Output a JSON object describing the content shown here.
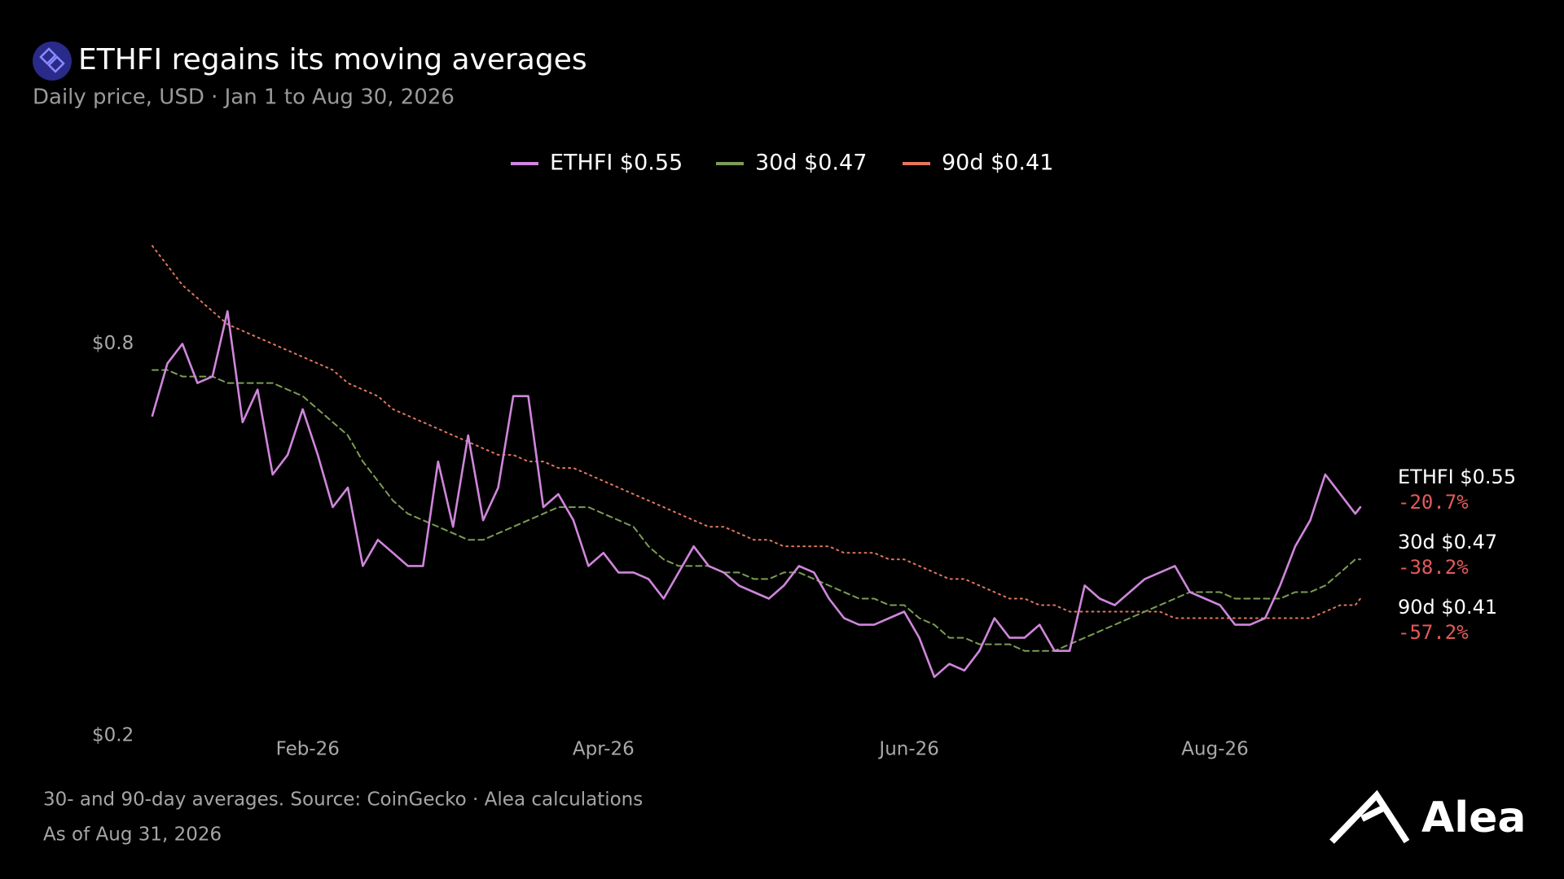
{
  "chart_data": {
    "type": "line",
    "title": "ETHFI regains its moving averages",
    "subtitle": "Daily price, USD · Jan 1 to Aug 30, 2026",
    "footnote": "30- and 90-day averages. Source: CoinGecko · Alea calculations",
    "as_of": "As of Aug 31, 2026",
    "brand": "Alea",
    "x": [
      "2026-01-01",
      "2026-01-04",
      "2026-01-07",
      "2026-01-10",
      "2026-01-13",
      "2026-01-16",
      "2026-01-19",
      "2026-01-22",
      "2026-01-25",
      "2026-01-28",
      "2026-01-31",
      "2026-02-03",
      "2026-02-06",
      "2026-02-09",
      "2026-02-12",
      "2026-02-15",
      "2026-02-18",
      "2026-02-21",
      "2026-02-24",
      "2026-02-27",
      "2026-03-02",
      "2026-03-05",
      "2026-03-08",
      "2026-03-11",
      "2026-03-14",
      "2026-03-17",
      "2026-03-20",
      "2026-03-23",
      "2026-03-26",
      "2026-03-29",
      "2026-04-01",
      "2026-04-04",
      "2026-04-07",
      "2026-04-10",
      "2026-04-13",
      "2026-04-16",
      "2026-04-19",
      "2026-04-22",
      "2026-04-25",
      "2026-04-28",
      "2026-05-01",
      "2026-05-04",
      "2026-05-07",
      "2026-05-10",
      "2026-05-13",
      "2026-05-16",
      "2026-05-19",
      "2026-05-22",
      "2026-05-25",
      "2026-05-28",
      "2026-05-31",
      "2026-06-03",
      "2026-06-06",
      "2026-06-09",
      "2026-06-12",
      "2026-06-15",
      "2026-06-18",
      "2026-06-21",
      "2026-06-24",
      "2026-06-27",
      "2026-06-30",
      "2026-07-03",
      "2026-07-06",
      "2026-07-09",
      "2026-07-12",
      "2026-07-15",
      "2026-07-18",
      "2026-07-21",
      "2026-07-24",
      "2026-07-27",
      "2026-07-30",
      "2026-08-02",
      "2026-08-05",
      "2026-08-08",
      "2026-08-11",
      "2026-08-14",
      "2026-08-17",
      "2026-08-20",
      "2026-08-23",
      "2026-08-26",
      "2026-08-29",
      "2026-08-30"
    ],
    "series": [
      {
        "name": "ETHFI $0.55",
        "color": "#cf86db",
        "style": "solid",
        "change": {
          "value": -20.7,
          "label": "-20.7%"
        },
        "values": [
          0.69,
          0.77,
          0.8,
          0.74,
          0.75,
          0.85,
          0.68,
          0.73,
          0.6,
          0.63,
          0.7,
          0.63,
          0.55,
          0.58,
          0.46,
          0.5,
          0.48,
          0.46,
          0.46,
          0.62,
          0.52,
          0.66,
          0.53,
          0.58,
          0.72,
          0.72,
          0.55,
          0.57,
          0.53,
          0.46,
          0.48,
          0.45,
          0.45,
          0.44,
          0.41,
          0.45,
          0.49,
          0.46,
          0.45,
          0.43,
          0.42,
          0.41,
          0.43,
          0.46,
          0.45,
          0.41,
          0.38,
          0.37,
          0.37,
          0.38,
          0.39,
          0.35,
          0.29,
          0.31,
          0.3,
          0.33,
          0.38,
          0.35,
          0.35,
          0.37,
          0.33,
          0.33,
          0.43,
          0.41,
          0.4,
          0.42,
          0.44,
          0.45,
          0.46,
          0.42,
          0.41,
          0.4,
          0.37,
          0.37,
          0.38,
          0.43,
          0.49,
          0.53,
          0.6,
          0.57,
          0.54,
          0.55
        ]
      },
      {
        "name": "30d $0.47",
        "color": "#7c9c57",
        "style": "dashed",
        "change": {
          "value": -38.2,
          "label": "-38.2%"
        },
        "values": [
          0.76,
          0.76,
          0.75,
          0.75,
          0.75,
          0.74,
          0.74,
          0.74,
          0.74,
          0.73,
          0.72,
          0.7,
          0.68,
          0.66,
          0.62,
          0.59,
          0.56,
          0.54,
          0.53,
          0.52,
          0.51,
          0.5,
          0.5,
          0.51,
          0.52,
          0.53,
          0.54,
          0.55,
          0.55,
          0.55,
          0.54,
          0.53,
          0.52,
          0.49,
          0.47,
          0.46,
          0.46,
          0.46,
          0.45,
          0.45,
          0.44,
          0.44,
          0.45,
          0.45,
          0.44,
          0.43,
          0.42,
          0.41,
          0.41,
          0.4,
          0.4,
          0.38,
          0.37,
          0.35,
          0.35,
          0.34,
          0.34,
          0.34,
          0.33,
          0.33,
          0.33,
          0.34,
          0.35,
          0.36,
          0.37,
          0.38,
          0.39,
          0.4,
          0.41,
          0.42,
          0.42,
          0.42,
          0.41,
          0.41,
          0.41,
          0.41,
          0.42,
          0.42,
          0.43,
          0.45,
          0.47,
          0.47
        ]
      },
      {
        "name": "90d $0.41",
        "color": "#e2775c",
        "style": "dotted",
        "change": {
          "value": -57.2,
          "label": "-57.2%"
        },
        "values": [
          0.95,
          0.92,
          0.89,
          0.87,
          0.85,
          0.83,
          0.82,
          0.81,
          0.8,
          0.79,
          0.78,
          0.77,
          0.76,
          0.74,
          0.73,
          0.72,
          0.7,
          0.69,
          0.68,
          0.67,
          0.66,
          0.65,
          0.64,
          0.63,
          0.63,
          0.62,
          0.62,
          0.61,
          0.61,
          0.6,
          0.59,
          0.58,
          0.57,
          0.56,
          0.55,
          0.54,
          0.53,
          0.52,
          0.52,
          0.51,
          0.5,
          0.5,
          0.49,
          0.49,
          0.49,
          0.49,
          0.48,
          0.48,
          0.48,
          0.47,
          0.47,
          0.46,
          0.45,
          0.44,
          0.44,
          0.43,
          0.42,
          0.41,
          0.41,
          0.4,
          0.4,
          0.39,
          0.39,
          0.39,
          0.39,
          0.39,
          0.39,
          0.39,
          0.38,
          0.38,
          0.38,
          0.38,
          0.38,
          0.38,
          0.38,
          0.38,
          0.38,
          0.38,
          0.39,
          0.4,
          0.4,
          0.41
        ]
      }
    ],
    "xlim": [
      "2026-01-01",
      "2026-08-30"
    ],
    "xticks": [
      {
        "value": "2026-02-01",
        "label": "Feb-26"
      },
      {
        "value": "2026-04-01",
        "label": "Apr-26"
      },
      {
        "value": "2026-06-01",
        "label": "Jun-26"
      },
      {
        "value": "2026-08-01",
        "label": "Aug-26"
      }
    ],
    "ylim": [
      0.2,
      1.0
    ],
    "yticks": [
      {
        "value": 0.2,
        "label": "$0.2"
      },
      {
        "value": 0.8,
        "label": "$0.8"
      }
    ],
    "grid": false,
    "legend": "top"
  }
}
